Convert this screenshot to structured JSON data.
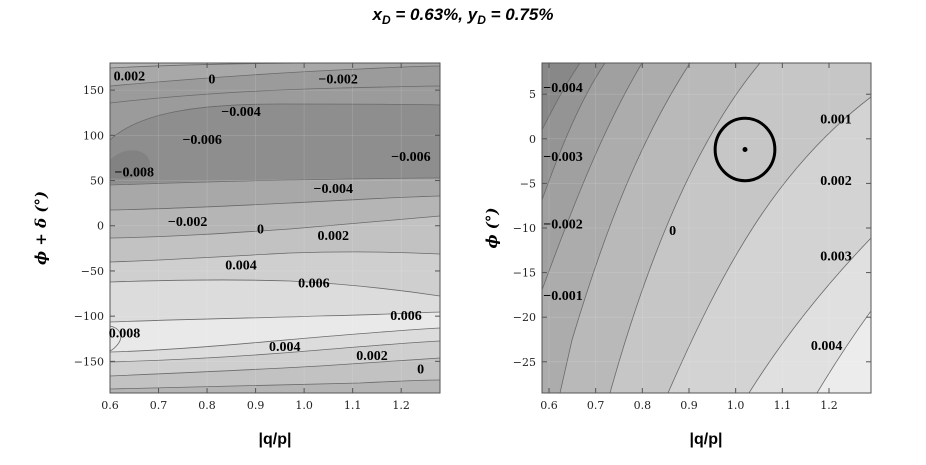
{
  "title": "x_D = 0.63%, y_D = 0.75%",
  "title_parts": {
    "x_sym": "x",
    "x_sub": "D",
    "x_val": " = 0.63%, ",
    "y_sym": "y",
    "y_sub": "D",
    "y_val": " = 0.75%"
  },
  "chart_data": [
    {
      "type": "contour",
      "xlabel": "|q/p|",
      "ylabel": "ϕ + δ (°)",
      "xlim": [
        0.6,
        1.28
      ],
      "ylim": [
        -185,
        180
      ],
      "xticks": [
        "0.6",
        "0.7",
        "0.8",
        "0.9",
        "1.0",
        "1.1",
        "1.2"
      ],
      "yticks": [
        "150",
        "100",
        "50",
        "0",
        "−50",
        "−100",
        "−150"
      ],
      "contour_labels": [
        {
          "text": "0.002",
          "x": 0.64,
          "y": 166
        },
        {
          "text": "0",
          "x": 0.81,
          "y": 163
        },
        {
          "text": "−0.002",
          "x": 1.07,
          "y": 163
        },
        {
          "text": "−0.004",
          "x": 0.87,
          "y": 127
        },
        {
          "text": "−0.006",
          "x": 0.79,
          "y": 96
        },
        {
          "text": "−0.006",
          "x": 1.22,
          "y": 77
        },
        {
          "text": "−0.008",
          "x": 0.65,
          "y": 60
        },
        {
          "text": "−0.004",
          "x": 1.06,
          "y": 42
        },
        {
          "text": "−0.002",
          "x": 0.76,
          "y": 5
        },
        {
          "text": "0",
          "x": 0.91,
          "y": -3
        },
        {
          "text": "0.002",
          "x": 1.06,
          "y": -10
        },
        {
          "text": "0.004",
          "x": 0.87,
          "y": -43
        },
        {
          "text": "0.006",
          "x": 1.02,
          "y": -63
        },
        {
          "text": "0.008",
          "x": 0.63,
          "y": -118
        },
        {
          "text": "0.006",
          "x": 1.21,
          "y": -99
        },
        {
          "text": "0.004",
          "x": 0.96,
          "y": -133
        },
        {
          "text": "0.002",
          "x": 1.14,
          "y": -143
        },
        {
          "text": "0",
          "x": 1.24,
          "y": -158
        }
      ]
    },
    {
      "type": "contour",
      "xlabel": "|q/p|",
      "ylabel": "ϕ (°)",
      "xlim": [
        0.585,
        1.29
      ],
      "ylim": [
        -28.5,
        8.5
      ],
      "xticks": [
        "0.6",
        "0.7",
        "0.8",
        "0.9",
        "1.0",
        "1.1",
        "1.2"
      ],
      "yticks": [
        "5",
        "0",
        "−5",
        "−10",
        "−15",
        "−20",
        "−25"
      ],
      "contour_labels": [
        {
          "text": "−0.004",
          "x": 0.63,
          "y": 5.8
        },
        {
          "text": "−0.003",
          "x": 0.63,
          "y": -1.9
        },
        {
          "text": "−0.002",
          "x": 0.63,
          "y": -9.5
        },
        {
          "text": "−0.001",
          "x": 0.63,
          "y": -17.5
        },
        {
          "text": "0",
          "x": 0.865,
          "y": -10.2
        },
        {
          "text": "0.001",
          "x": 1.215,
          "y": 2.3
        },
        {
          "text": "0.002",
          "x": 1.215,
          "y": -4.6
        },
        {
          "text": "0.003",
          "x": 1.215,
          "y": -13.1
        },
        {
          "text": "0.004",
          "x": 1.195,
          "y": -23.1
        }
      ],
      "marker": {
        "x": 1.02,
        "y": -1.2
      },
      "ellipse_radius": {
        "x": 0.064,
        "y": 3.5
      }
    }
  ]
}
